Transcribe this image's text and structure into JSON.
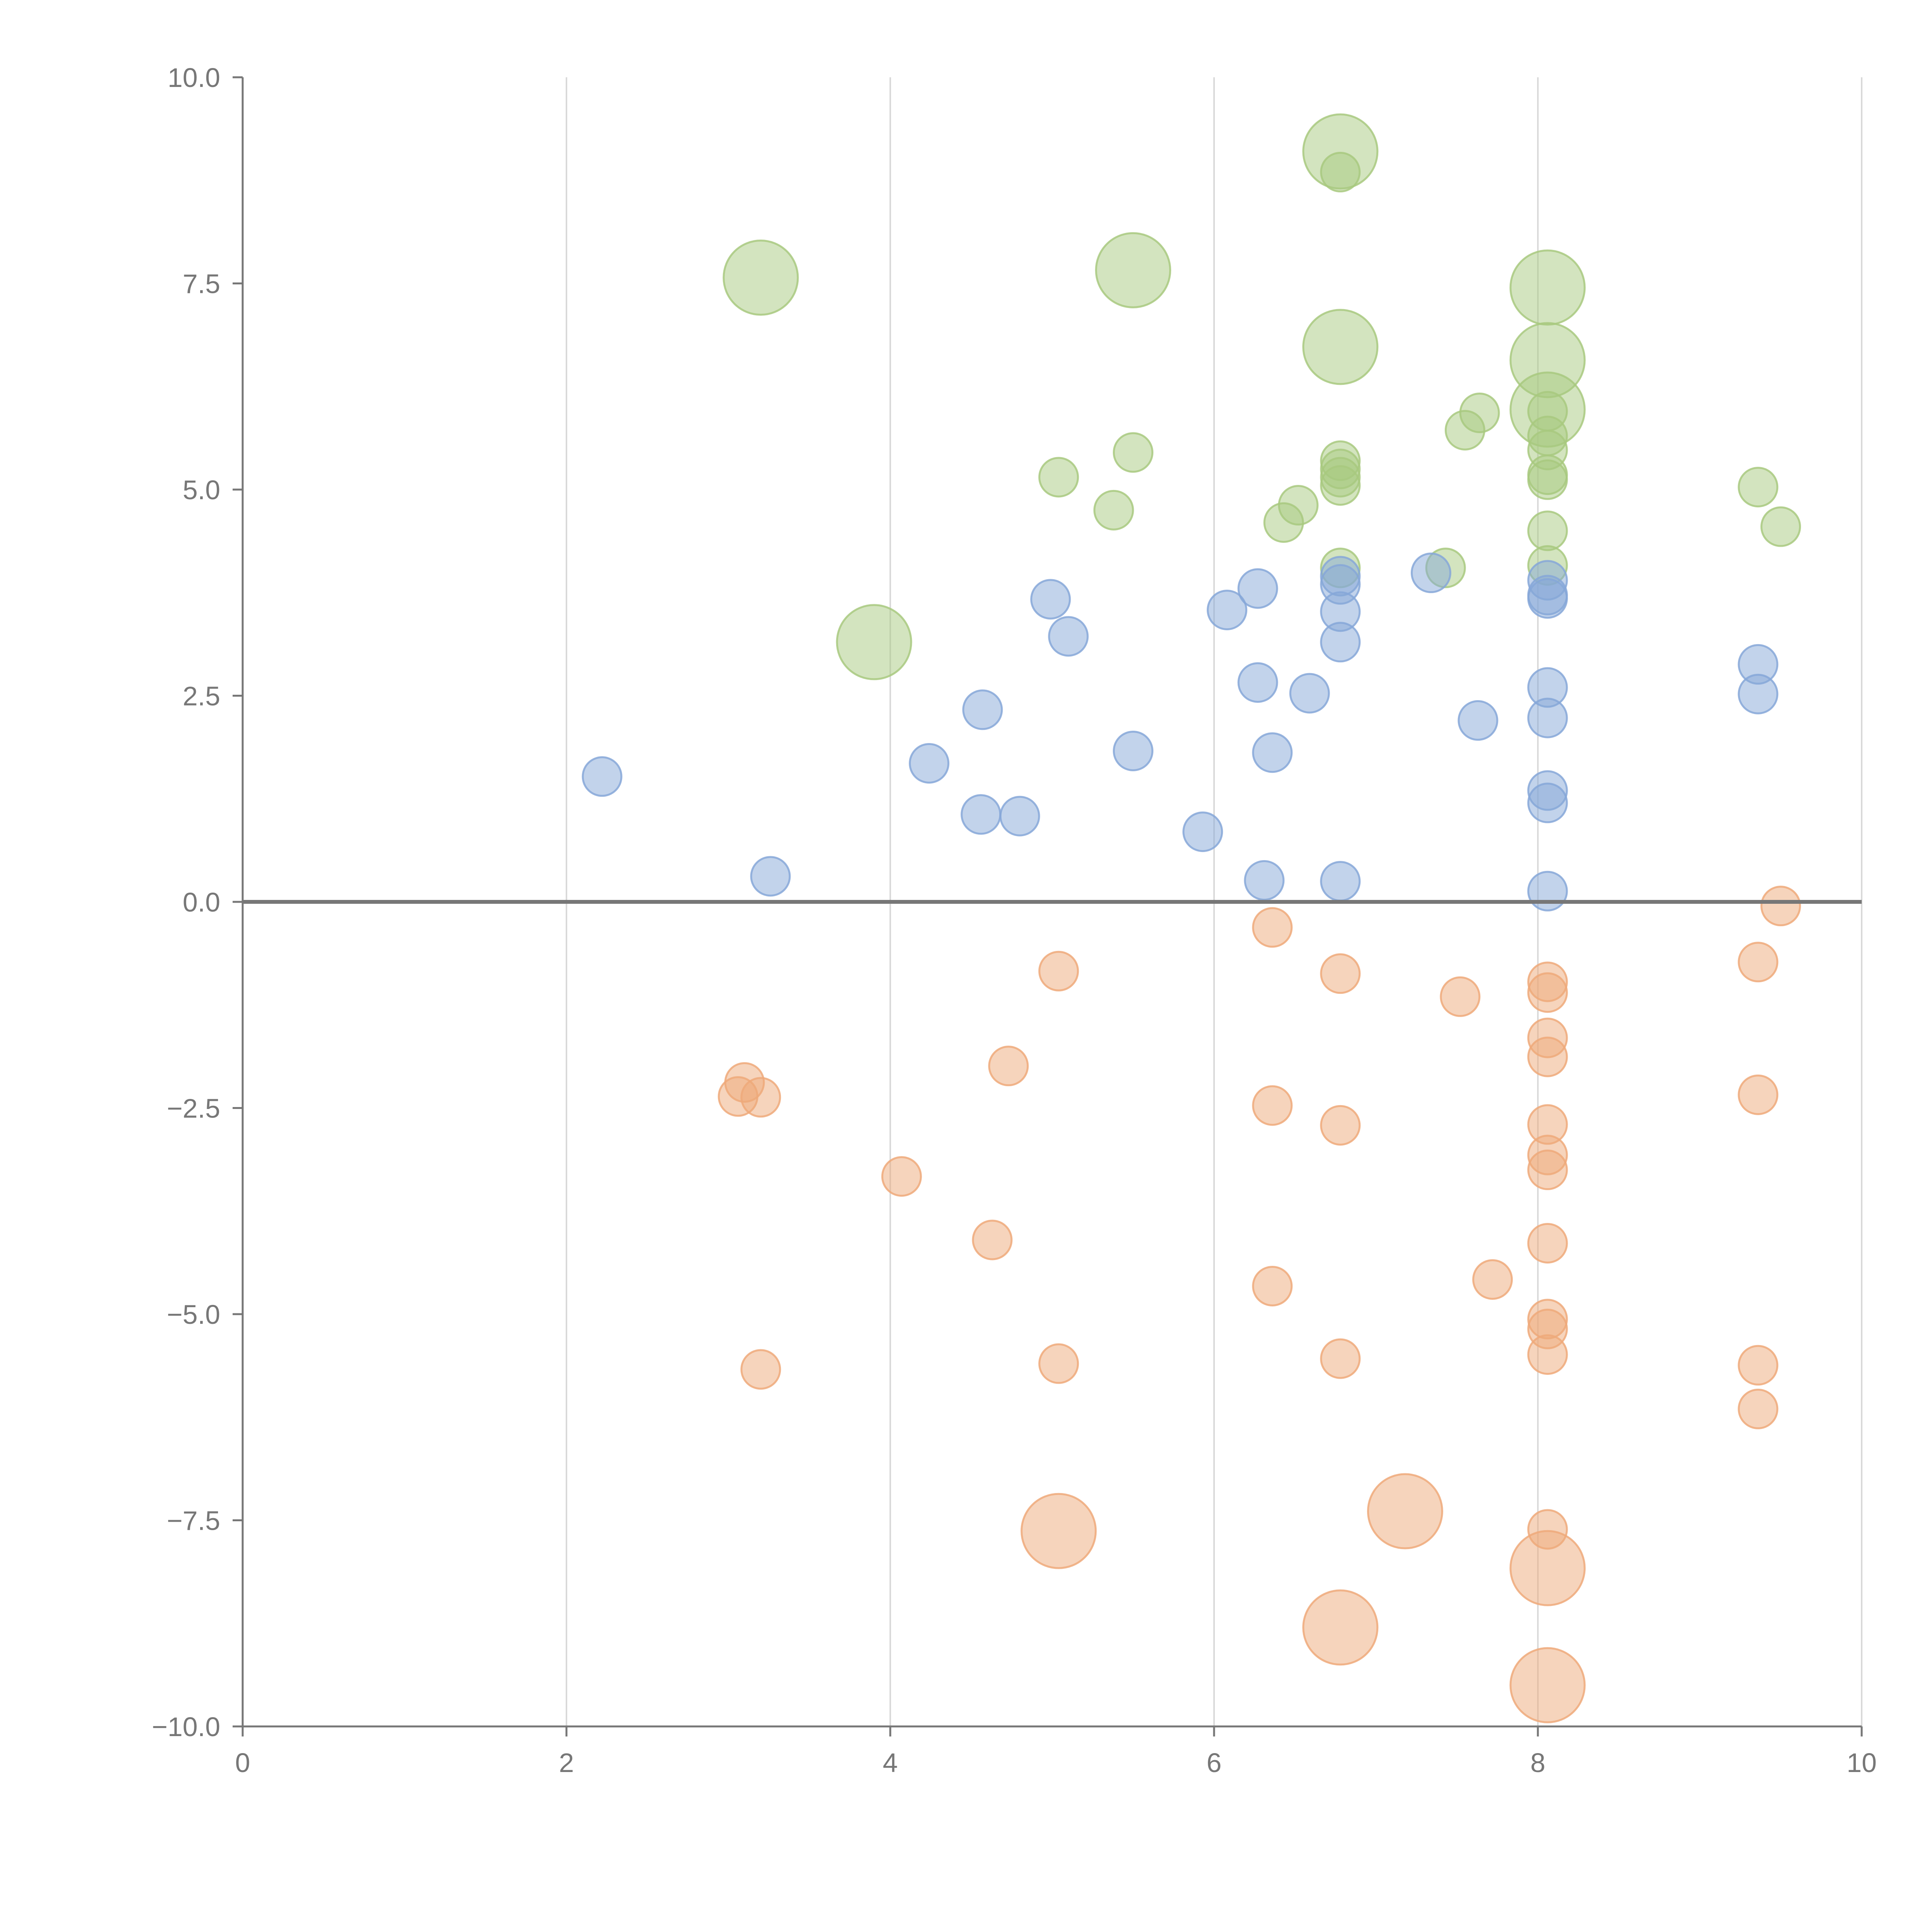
{
  "chart_data": {
    "type": "scatter",
    "title": "",
    "xlabel": "",
    "ylabel": "",
    "xlim": [
      0,
      10
    ],
    "ylim": [
      -10,
      10
    ],
    "grid": "vertical",
    "legend": "none",
    "reference_line_y": 0,
    "x_ticks": [
      "0",
      "2",
      "4",
      "6",
      "8",
      "10"
    ],
    "x_tick_values": [
      0,
      2,
      4,
      6,
      8,
      10
    ],
    "y_ticks": [
      "10.0",
      "7.5",
      "5.0",
      "2.5",
      "0.0",
      "−2.5",
      "−5.0",
      "−7.5",
      "−10.0"
    ],
    "y_tick_values": [
      10,
      7.5,
      5,
      2.5,
      0,
      -2.5,
      -5,
      -7.5,
      -10
    ],
    "series": [
      {
        "name": "green",
        "color": "#a8c97f",
        "points": [
          {
            "x": 6.78,
            "y": 9.1,
            "s": 3
          },
          {
            "x": 6.78,
            "y": 8.85,
            "s": 1
          },
          {
            "x": 3.2,
            "y": 7.57,
            "s": 3
          },
          {
            "x": 5.5,
            "y": 7.66,
            "s": 3
          },
          {
            "x": 8.06,
            "y": 7.45,
            "s": 3
          },
          {
            "x": 6.78,
            "y": 6.73,
            "s": 3
          },
          {
            "x": 8.06,
            "y": 6.57,
            "s": 3
          },
          {
            "x": 8.06,
            "y": 5.97,
            "s": 3
          },
          {
            "x": 8.06,
            "y": 5.95,
            "s": 1
          },
          {
            "x": 7.64,
            "y": 5.93,
            "s": 1
          },
          {
            "x": 7.55,
            "y": 5.72,
            "s": 1
          },
          {
            "x": 8.06,
            "y": 5.65,
            "s": 1
          },
          {
            "x": 8.06,
            "y": 5.48,
            "s": 1
          },
          {
            "x": 5.5,
            "y": 5.45,
            "s": 1
          },
          {
            "x": 6.78,
            "y": 5.35,
            "s": 1
          },
          {
            "x": 6.78,
            "y": 5.25,
            "s": 1
          },
          {
            "x": 6.78,
            "y": 5.15,
            "s": 1
          },
          {
            "x": 5.04,
            "y": 5.15,
            "s": 1
          },
          {
            "x": 8.06,
            "y": 5.18,
            "s": 1
          },
          {
            "x": 8.06,
            "y": 5.12,
            "s": 1
          },
          {
            "x": 6.78,
            "y": 5.05,
            "s": 1
          },
          {
            "x": 9.36,
            "y": 5.03,
            "s": 1
          },
          {
            "x": 6.52,
            "y": 4.81,
            "s": 1
          },
          {
            "x": 5.38,
            "y": 4.75,
            "s": 1
          },
          {
            "x": 6.43,
            "y": 4.6,
            "s": 1
          },
          {
            "x": 9.5,
            "y": 4.55,
            "s": 1
          },
          {
            "x": 8.06,
            "y": 4.5,
            "s": 1
          },
          {
            "x": 8.06,
            "y": 4.08,
            "s": 1
          },
          {
            "x": 7.43,
            "y": 4.05,
            "s": 1
          },
          {
            "x": 6.78,
            "y": 4.05,
            "s": 1
          },
          {
            "x": 3.9,
            "y": 3.15,
            "s": 3
          }
        ]
      },
      {
        "name": "blue",
        "color": "#86a7d8",
        "points": [
          {
            "x": 7.34,
            "y": 3.99,
            "s": 1
          },
          {
            "x": 6.78,
            "y": 3.95,
            "s": 1
          },
          {
            "x": 8.06,
            "y": 3.9,
            "s": 1
          },
          {
            "x": 6.78,
            "y": 3.85,
            "s": 1
          },
          {
            "x": 6.27,
            "y": 3.8,
            "s": 1
          },
          {
            "x": 8.06,
            "y": 3.72,
            "s": 1
          },
          {
            "x": 8.06,
            "y": 3.68,
            "s": 1
          },
          {
            "x": 4.99,
            "y": 3.67,
            "s": 1
          },
          {
            "x": 6.08,
            "y": 3.54,
            "s": 1
          },
          {
            "x": 6.78,
            "y": 3.52,
            "s": 1
          },
          {
            "x": 5.1,
            "y": 3.22,
            "s": 1
          },
          {
            "x": 6.78,
            "y": 3.15,
            "s": 1
          },
          {
            "x": 9.36,
            "y": 2.88,
            "s": 1
          },
          {
            "x": 6.27,
            "y": 2.66,
            "s": 1
          },
          {
            "x": 8.06,
            "y": 2.6,
            "s": 1
          },
          {
            "x": 6.59,
            "y": 2.53,
            "s": 1
          },
          {
            "x": 9.36,
            "y": 2.52,
            "s": 1
          },
          {
            "x": 4.57,
            "y": 2.33,
            "s": 1
          },
          {
            "x": 8.06,
            "y": 2.23,
            "s": 1
          },
          {
            "x": 7.63,
            "y": 2.2,
            "s": 1
          },
          {
            "x": 5.5,
            "y": 1.83,
            "s": 1
          },
          {
            "x": 6.36,
            "y": 1.81,
            "s": 1
          },
          {
            "x": 4.24,
            "y": 1.68,
            "s": 1
          },
          {
            "x": 2.22,
            "y": 1.52,
            "s": 1
          },
          {
            "x": 8.06,
            "y": 1.35,
            "s": 1
          },
          {
            "x": 8.06,
            "y": 1.2,
            "s": 1
          },
          {
            "x": 4.56,
            "y": 1.06,
            "s": 1
          },
          {
            "x": 4.8,
            "y": 1.04,
            "s": 1
          },
          {
            "x": 5.93,
            "y": 0.85,
            "s": 1
          },
          {
            "x": 3.26,
            "y": 0.31,
            "s": 1
          },
          {
            "x": 6.31,
            "y": 0.26,
            "s": 1
          },
          {
            "x": 6.78,
            "y": 0.25,
            "s": 1
          },
          {
            "x": 8.06,
            "y": 0.13,
            "s": 1
          }
        ]
      },
      {
        "name": "orange",
        "color": "#eea97a",
        "points": [
          {
            "x": 9.5,
            "y": -0.05,
            "s": 1
          },
          {
            "x": 6.36,
            "y": -0.31,
            "s": 1
          },
          {
            "x": 9.36,
            "y": -0.73,
            "s": 1
          },
          {
            "x": 5.04,
            "y": -0.84,
            "s": 1
          },
          {
            "x": 6.78,
            "y": -0.87,
            "s": 1
          },
          {
            "x": 8.06,
            "y": -0.97,
            "s": 1
          },
          {
            "x": 8.06,
            "y": -1.1,
            "s": 1
          },
          {
            "x": 7.52,
            "y": -1.15,
            "s": 1
          },
          {
            "x": 8.06,
            "y": -1.65,
            "s": 1
          },
          {
            "x": 8.06,
            "y": -1.88,
            "s": 1
          },
          {
            "x": 4.73,
            "y": -1.99,
            "s": 1
          },
          {
            "x": 3.1,
            "y": -2.19,
            "s": 1
          },
          {
            "x": 3.06,
            "y": -2.36,
            "s": 1
          },
          {
            "x": 3.2,
            "y": -2.37,
            "s": 1
          },
          {
            "x": 9.36,
            "y": -2.34,
            "s": 1
          },
          {
            "x": 6.36,
            "y": -2.47,
            "s": 1
          },
          {
            "x": 8.06,
            "y": -2.7,
            "s": 1
          },
          {
            "x": 6.78,
            "y": -2.71,
            "s": 1
          },
          {
            "x": 8.06,
            "y": -3.07,
            "s": 1
          },
          {
            "x": 8.06,
            "y": -3.25,
            "s": 1
          },
          {
            "x": 4.07,
            "y": -3.33,
            "s": 1
          },
          {
            "x": 4.63,
            "y": -4.1,
            "s": 1
          },
          {
            "x": 8.06,
            "y": -4.14,
            "s": 1
          },
          {
            "x": 7.72,
            "y": -4.58,
            "s": 1
          },
          {
            "x": 6.36,
            "y": -4.66,
            "s": 1
          },
          {
            "x": 8.06,
            "y": -5.06,
            "s": 1
          },
          {
            "x": 8.06,
            "y": -5.18,
            "s": 1
          },
          {
            "x": 8.06,
            "y": -5.49,
            "s": 1
          },
          {
            "x": 6.78,
            "y": -5.54,
            "s": 1
          },
          {
            "x": 5.04,
            "y": -5.6,
            "s": 1
          },
          {
            "x": 9.36,
            "y": -5.62,
            "s": 1
          },
          {
            "x": 3.2,
            "y": -5.67,
            "s": 1
          },
          {
            "x": 9.36,
            "y": -6.15,
            "s": 1
          },
          {
            "x": 7.18,
            "y": -7.39,
            "s": 3
          },
          {
            "x": 8.06,
            "y": -7.61,
            "s": 1
          },
          {
            "x": 5.04,
            "y": -7.63,
            "s": 3
          },
          {
            "x": 8.06,
            "y": -8.08,
            "s": 3
          },
          {
            "x": 6.78,
            "y": -8.8,
            "s": 3
          },
          {
            "x": 8.06,
            "y": -9.5,
            "s": 3
          }
        ]
      }
    ]
  }
}
